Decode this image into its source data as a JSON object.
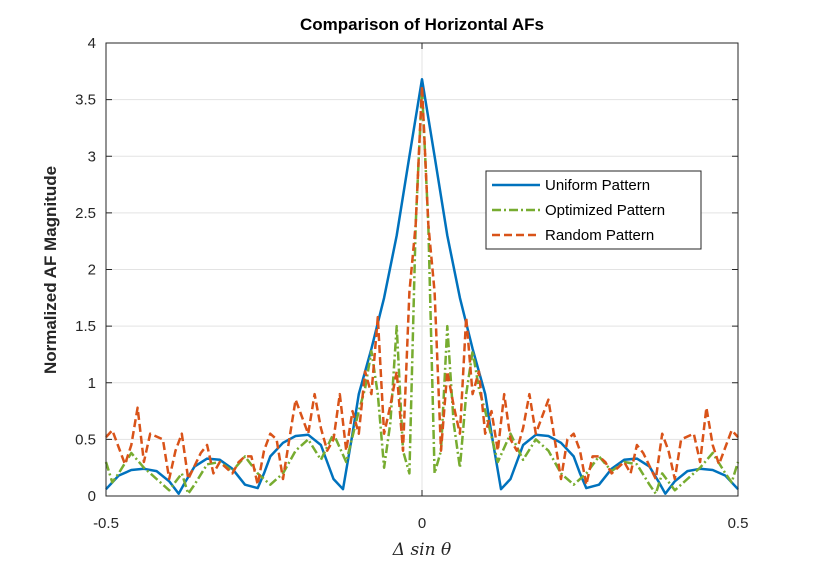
{
  "chart_data": {
    "type": "line",
    "title": "Comparison of Horizontal AFs",
    "xlabel": "Δ sin θ",
    "ylabel": "Normalized AF Magnitude",
    "xlim": [
      -0.5,
      0.5
    ],
    "ylim": [
      0,
      4
    ],
    "xticks": [
      -0.5,
      0,
      0.5
    ],
    "xtick_labels": [
      "-0.5",
      "0",
      "0.5"
    ],
    "yticks": [
      0,
      0.5,
      1,
      1.5,
      2,
      2.5,
      3,
      3.5,
      4
    ],
    "ytick_labels": [
      "0",
      "0.5",
      "1",
      "1.5",
      "2",
      "2.5",
      "3",
      "3.5",
      "4"
    ],
    "grid": true,
    "legend_position": "right-middle",
    "series": [
      {
        "name": "Uniform Pattern",
        "color": "#0072BD",
        "style": "solid",
        "x": [
          -0.5,
          -0.48,
          -0.46,
          -0.44,
          -0.42,
          -0.4,
          -0.385,
          -0.375,
          -0.36,
          -0.34,
          -0.32,
          -0.3,
          -0.28,
          -0.26,
          -0.25,
          -0.24,
          -0.22,
          -0.2,
          -0.18,
          -0.16,
          -0.14,
          -0.125,
          -0.11,
          -0.1,
          -0.08,
          -0.06,
          -0.04,
          -0.02,
          0,
          0.02,
          0.04,
          0.06,
          0.08,
          0.1,
          0.11,
          0.125,
          0.14,
          0.16,
          0.18,
          0.2,
          0.22,
          0.24,
          0.25,
          0.26,
          0.28,
          0.3,
          0.32,
          0.34,
          0.36,
          0.375,
          0.385,
          0.4,
          0.42,
          0.44,
          0.46,
          0.48,
          0.5
        ],
        "y": [
          0.06,
          0.18,
          0.23,
          0.24,
          0.22,
          0.13,
          0.02,
          0.12,
          0.26,
          0.33,
          0.32,
          0.24,
          0.1,
          0.07,
          0.2,
          0.35,
          0.47,
          0.53,
          0.54,
          0.45,
          0.15,
          0.06,
          0.55,
          0.9,
          1.3,
          1.75,
          2.3,
          3.0,
          3.68,
          3.0,
          2.3,
          1.75,
          1.3,
          0.9,
          0.55,
          0.06,
          0.15,
          0.45,
          0.54,
          0.53,
          0.47,
          0.35,
          0.2,
          0.07,
          0.1,
          0.24,
          0.32,
          0.33,
          0.26,
          0.12,
          0.02,
          0.13,
          0.22,
          0.24,
          0.23,
          0.18,
          0.06
        ]
      },
      {
        "name": "Optimized Pattern",
        "color": "#77AC30",
        "style": "dashdot",
        "x": [
          -0.5,
          -0.49,
          -0.48,
          -0.46,
          -0.44,
          -0.42,
          -0.4,
          -0.38,
          -0.37,
          -0.36,
          -0.34,
          -0.32,
          -0.3,
          -0.28,
          -0.26,
          -0.24,
          -0.22,
          -0.2,
          -0.18,
          -0.16,
          -0.14,
          -0.12,
          -0.1,
          -0.09,
          -0.08,
          -0.07,
          -0.06,
          -0.05,
          -0.04,
          -0.03,
          -0.02,
          -0.01,
          0,
          0.01,
          0.02,
          0.03,
          0.04,
          0.05,
          0.06,
          0.07,
          0.08,
          0.09,
          0.1,
          0.12,
          0.14,
          0.16,
          0.18,
          0.2,
          0.22,
          0.24,
          0.26,
          0.28,
          0.3,
          0.32,
          0.34,
          0.36,
          0.37,
          0.38,
          0.4,
          0.42,
          0.44,
          0.46,
          0.48,
          0.49,
          0.5
        ],
        "y": [
          0.3,
          0.12,
          0.2,
          0.38,
          0.25,
          0.15,
          0.05,
          0.2,
          0.02,
          0.1,
          0.28,
          0.3,
          0.22,
          0.35,
          0.2,
          0.1,
          0.2,
          0.4,
          0.5,
          0.32,
          0.55,
          0.3,
          0.75,
          0.95,
          1.28,
          0.9,
          0.25,
          0.65,
          1.5,
          0.4,
          0.2,
          2.4,
          3.6,
          2.4,
          0.2,
          0.4,
          1.5,
          0.65,
          0.25,
          0.9,
          1.28,
          0.95,
          0.75,
          0.3,
          0.55,
          0.32,
          0.5,
          0.4,
          0.2,
          0.1,
          0.2,
          0.35,
          0.22,
          0.3,
          0.28,
          0.1,
          0.02,
          0.2,
          0.05,
          0.15,
          0.25,
          0.38,
          0.2,
          0.12,
          0.3
        ]
      },
      {
        "name": "Random Pattern",
        "color": "#D95319",
        "style": "dashed",
        "x": [
          -0.5,
          -0.49,
          -0.47,
          -0.46,
          -0.45,
          -0.44,
          -0.43,
          -0.41,
          -0.4,
          -0.39,
          -0.38,
          -0.37,
          -0.35,
          -0.34,
          -0.33,
          -0.32,
          -0.31,
          -0.3,
          -0.29,
          -0.28,
          -0.27,
          -0.26,
          -0.25,
          -0.24,
          -0.23,
          -0.22,
          -0.21,
          -0.2,
          -0.19,
          -0.18,
          -0.17,
          -0.16,
          -0.15,
          -0.14,
          -0.13,
          -0.12,
          -0.11,
          -0.1,
          -0.09,
          -0.08,
          -0.07,
          -0.06,
          -0.05,
          -0.04,
          -0.03,
          -0.02,
          -0.01,
          0,
          0.01,
          0.02,
          0.03,
          0.04,
          0.05,
          0.06,
          0.07,
          0.08,
          0.09,
          0.1,
          0.11,
          0.12,
          0.13,
          0.14,
          0.15,
          0.16,
          0.17,
          0.18,
          0.19,
          0.2,
          0.21,
          0.22,
          0.23,
          0.24,
          0.25,
          0.26,
          0.27,
          0.28,
          0.29,
          0.3,
          0.31,
          0.32,
          0.33,
          0.34,
          0.35,
          0.37,
          0.38,
          0.39,
          0.4,
          0.41,
          0.43,
          0.44,
          0.45,
          0.46,
          0.47,
          0.49,
          0.5
        ],
        "y": [
          0.52,
          0.58,
          0.28,
          0.45,
          0.78,
          0.3,
          0.55,
          0.5,
          0.15,
          0.4,
          0.55,
          0.15,
          0.38,
          0.45,
          0.2,
          0.3,
          0.25,
          0.2,
          0.3,
          0.35,
          0.35,
          0.1,
          0.4,
          0.55,
          0.5,
          0.15,
          0.5,
          0.85,
          0.7,
          0.55,
          0.9,
          0.6,
          0.4,
          0.5,
          0.9,
          0.4,
          0.75,
          0.55,
          1.1,
          0.9,
          1.58,
          0.55,
          0.8,
          1.1,
          0.4,
          1.8,
          2.4,
          3.62,
          2.4,
          1.8,
          0.4,
          1.1,
          0.8,
          0.55,
          1.58,
          0.9,
          1.1,
          0.55,
          0.75,
          0.4,
          0.9,
          0.5,
          0.4,
          0.6,
          0.9,
          0.55,
          0.7,
          0.85,
          0.5,
          0.15,
          0.5,
          0.55,
          0.4,
          0.1,
          0.35,
          0.35,
          0.3,
          0.2,
          0.25,
          0.3,
          0.2,
          0.45,
          0.38,
          0.15,
          0.55,
          0.4,
          0.15,
          0.5,
          0.55,
          0.3,
          0.78,
          0.45,
          0.28,
          0.58,
          0.52
        ]
      }
    ]
  }
}
